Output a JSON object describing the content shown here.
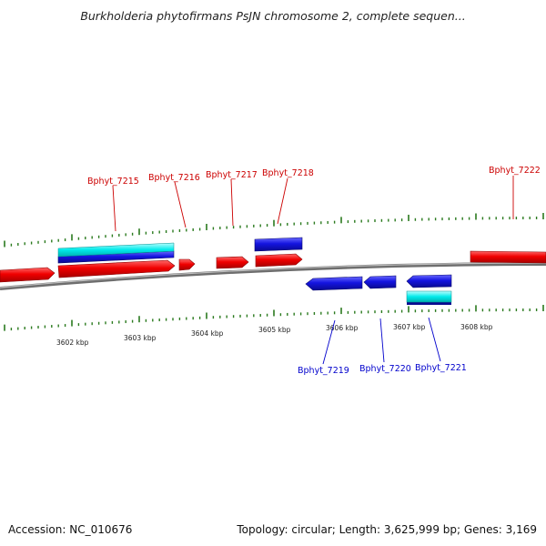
{
  "title": "Burkholderia phytofirmans PsJN chromosome 2, complete sequen...",
  "footer": {
    "accession": "Accession: NC_010676",
    "summary": "Topology: circular; Length: 3,625,999 bp; Genes: 3,169"
  },
  "colors": {
    "forward_gene": "#e00000",
    "reverse_gene": "#1a1ad8",
    "rna_feature": "#00e6e6",
    "tick": "#2a7a1e",
    "backbone": "#8a8a8a",
    "forward_label": "#cc0000",
    "reverse_label": "#0000cc"
  },
  "scale_labels": [
    "3602 kbp",
    "3603 kbp",
    "3604 kbp",
    "3605 kbp",
    "3606 kbp",
    "3607 kbp",
    "3608 kbp"
  ],
  "gene_labels": {
    "top": [
      "Bphyt_7215",
      "Bphyt_7216",
      "Bphyt_7217",
      "Bphyt_7218",
      "Bphyt_7222"
    ],
    "bottom": [
      "Bphyt_7219",
      "Bphyt_7220",
      "Bphyt_7221"
    ]
  }
}
